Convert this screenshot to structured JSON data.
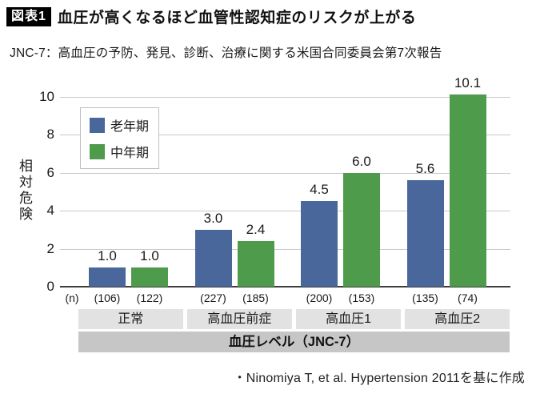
{
  "header": {
    "badge": "図表1",
    "title": "血圧が高くなるほど血管性認知症のリスクが上がる"
  },
  "subtitle": "JNC-7：高血圧の予防、発見、診断、治療に関する米国合同委員会第7次報告",
  "chart_data": {
    "type": "bar",
    "ylabel": "相対危険",
    "ylim": [
      0,
      10
    ],
    "yticks": [
      0,
      2,
      4,
      6,
      8,
      10
    ],
    "grid": true,
    "legend_position": "upper-left",
    "categories": [
      "正常",
      "高血圧前症",
      "高血圧1",
      "高血圧2"
    ],
    "series": [
      {
        "name": "老年期",
        "color": "#4a679b",
        "values": [
          1.0,
          3.0,
          4.5,
          5.6
        ],
        "value_labels": [
          "1.0",
          "3.0",
          "4.5",
          "5.6"
        ],
        "n_labels": [
          "(106)",
          "(227)",
          "(200)",
          "(135)"
        ]
      },
      {
        "name": "中年期",
        "color": "#4f9b4c",
        "values": [
          1.0,
          2.4,
          6.0,
          10.1
        ],
        "value_labels": [
          "1.0",
          "2.4",
          "6.0",
          "10.1"
        ],
        "n_labels": [
          "(122)",
          "(185)",
          "(153)",
          "(74)"
        ]
      }
    ],
    "n_axis_label": "(n)",
    "group_axis_label": "血圧レベル（JNC-7）"
  },
  "source": "・Ninomiya T, et al. Hypertension 2011を基に作成",
  "colors": {
    "bar_blue": "#4a679b",
    "bar_green": "#4f9b4c",
    "gridline": "#c9c9c9",
    "axis": "#3d3d3d",
    "category_box": "#e2e2e2",
    "group_axis_bar": "#c6c6c6",
    "badge_bg": "#000000",
    "badge_text": "#ffffff"
  }
}
